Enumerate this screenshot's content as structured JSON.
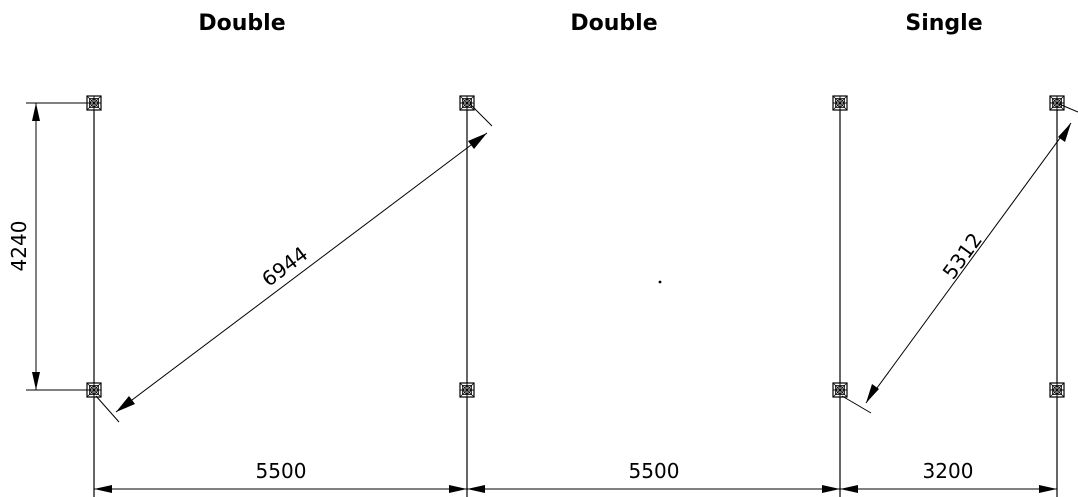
{
  "bays": [
    {
      "title": "Double"
    },
    {
      "title": "Double"
    },
    {
      "title": "Single"
    }
  ],
  "dimensions": {
    "depth": "4240",
    "bay1_width": "5500",
    "bay2_width": "5500",
    "bay3_width": "3200",
    "diagonal1": "6944",
    "diagonal2": "5312"
  }
}
